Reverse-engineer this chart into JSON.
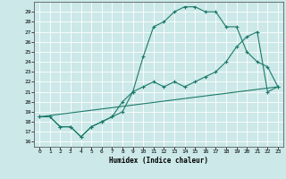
{
  "xlabel": "Humidex (Indice chaleur)",
  "background_color": "#cce8e8",
  "grid_color": "#ffffff",
  "line_color": "#1a7a6a",
  "xlim": [
    -0.5,
    23.5
  ],
  "ylim": [
    15.5,
    30.0
  ],
  "xticks": [
    0,
    1,
    2,
    3,
    4,
    5,
    6,
    7,
    8,
    9,
    10,
    11,
    12,
    13,
    14,
    15,
    16,
    17,
    18,
    19,
    20,
    21,
    22,
    23
  ],
  "yticks": [
    16,
    17,
    18,
    19,
    20,
    21,
    22,
    23,
    24,
    25,
    26,
    27,
    28,
    29
  ],
  "line1_x": [
    0,
    1,
    2,
    3,
    4,
    5,
    6,
    7,
    8,
    9,
    10,
    11,
    12,
    13,
    14,
    15,
    16,
    17,
    18,
    19,
    20,
    21,
    22,
    23
  ],
  "line1_y": [
    18.5,
    18.5,
    17.5,
    17.5,
    16.5,
    17.5,
    18.0,
    18.5,
    19.0,
    21.0,
    21.5,
    22.0,
    21.5,
    22.0,
    21.5,
    22.0,
    22.5,
    23.0,
    24.0,
    25.5,
    26.5,
    27.0,
    21.0,
    21.5
  ],
  "line2_x": [
    0,
    1,
    2,
    3,
    4,
    5,
    6,
    7,
    8,
    9,
    10,
    11,
    12,
    13,
    14,
    15,
    16,
    17,
    18,
    19,
    20,
    21,
    22,
    23
  ],
  "line2_y": [
    18.5,
    18.5,
    17.5,
    17.5,
    16.5,
    17.5,
    18.0,
    18.5,
    20.0,
    21.0,
    24.5,
    27.5,
    28.0,
    29.0,
    29.5,
    29.5,
    29.0,
    29.0,
    27.5,
    27.5,
    25.0,
    24.0,
    23.5,
    21.5
  ],
  "line3_x": [
    0,
    23
  ],
  "line3_y": [
    18.5,
    21.5
  ]
}
